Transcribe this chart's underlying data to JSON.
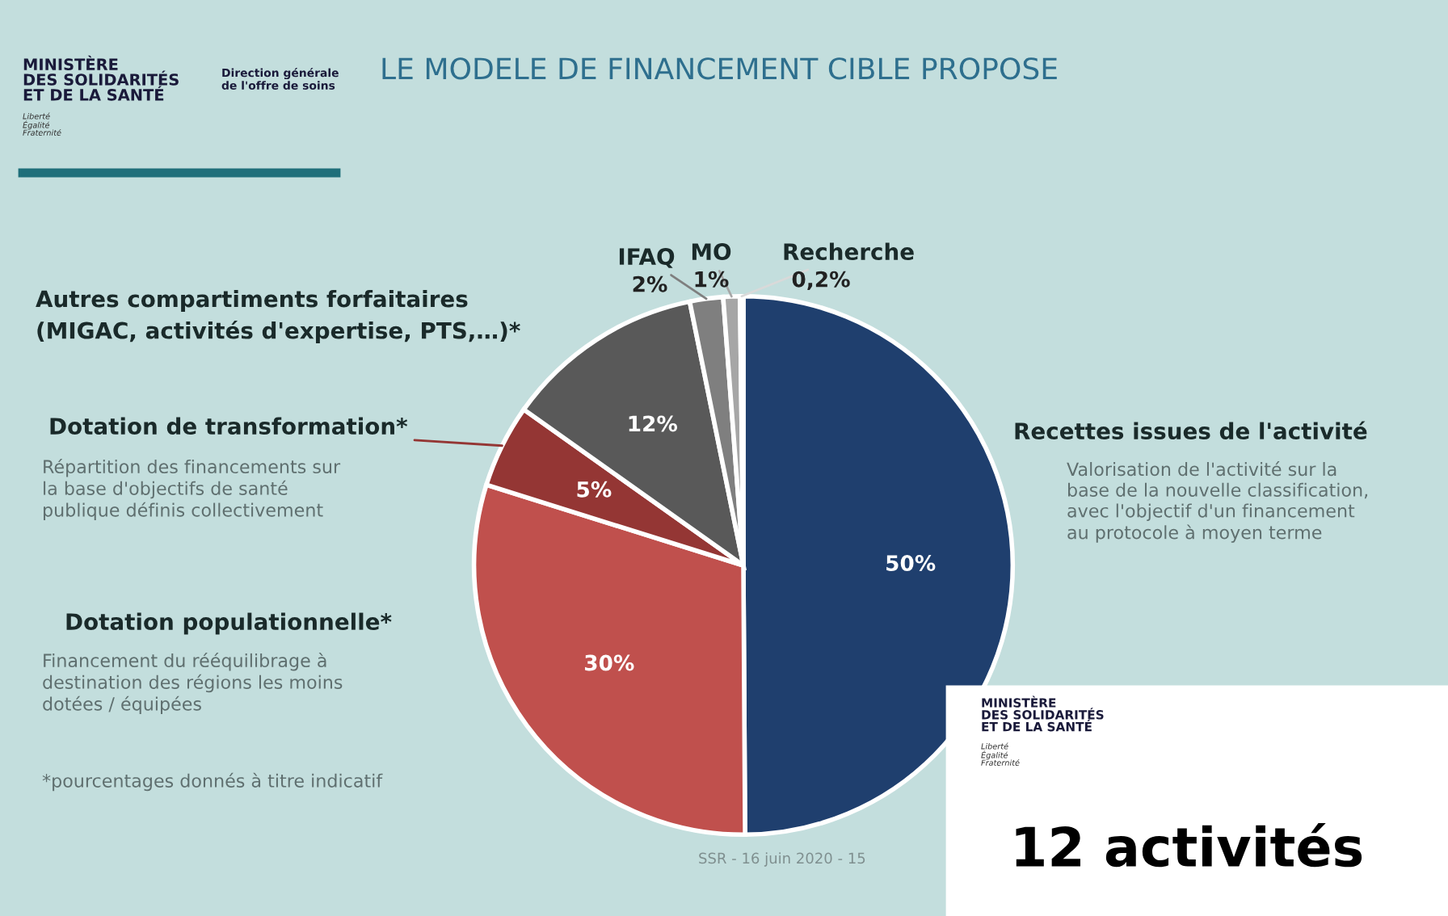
{
  "chart_data": {
    "type": "pie",
    "title": "LE MODELE DE FINANCEMENT CIBLE PROPOSE",
    "categories": [
      "Recettes issues de l'activité",
      "Dotation populationnelle*",
      "Dotation de transformation*",
      "Autres compartiments forfaitaires\n(MIGAC, activités d'expertise, PTS,…)*",
      "IFAQ",
      "MO",
      "Recherche"
    ],
    "values": [
      50,
      30,
      5,
      12,
      2,
      1,
      0.2
    ],
    "colors": [
      "#1f3f6e",
      "#c0504d",
      "#943634",
      "#595959",
      "#7f7f7f",
      "#a6a6a6",
      "#d9d9d9"
    ],
    "value_labels": [
      "50%",
      "30%",
      "5%",
      "12%",
      "2%",
      "1%",
      "0,2%"
    ],
    "annotations": [
      "MINISTÈRE\nDES SOLIDARITÉS\nET DE LA SANTÉ",
      "Liberté\nÉgalité\nFraternité",
      "Direction générale\nde l'offre de soins",
      "Valorisation de l'activité sur la\nbase de la nouvelle classification,\navec l'objectif d'un financement\nau protocole à moyen terme",
      "Répartition des financements sur\nla base d'objectifs de santé\npublique définis collectivement",
      "Financement du rééquilibrage à\ndestination des régions les moins\ndotées / équipées",
      "*pourcentages donnés à titre indicatif",
      "SSR - 16 juin 2020 - 15",
      "MINISTÈRE\nDES SOLIDARITÉS\nET DE LA SANTÉ",
      "Liberté\nÉgalité\nFraternité",
      "12 activités"
    ]
  }
}
